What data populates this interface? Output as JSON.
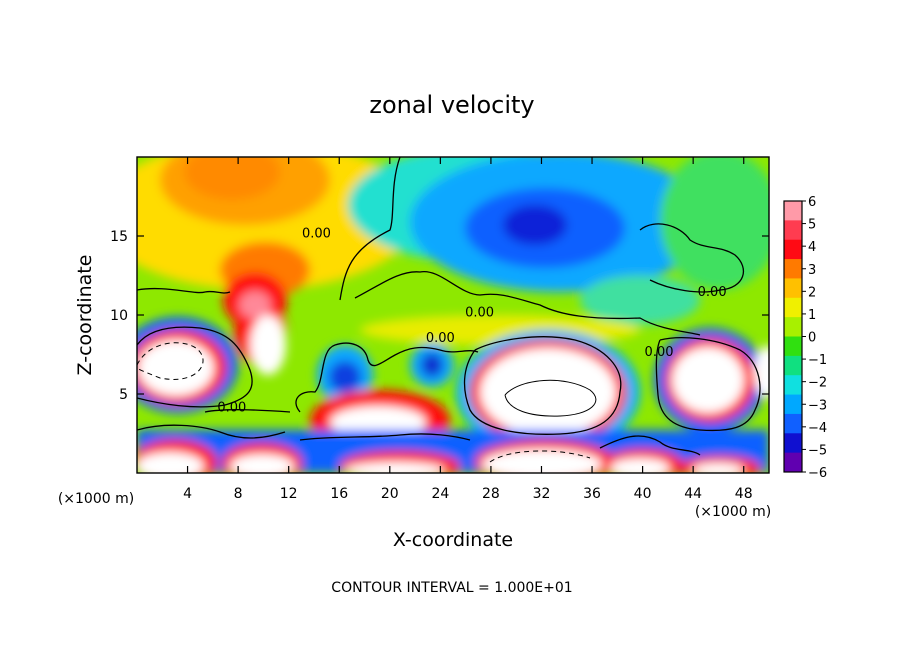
{
  "chart_data": {
    "type": "heatmap",
    "title": "zonal velocity",
    "xlabel": "X-coordinate",
    "ylabel": "Z-coordinate",
    "x_unit": "(×1000 m)",
    "z_unit": "(×1000 m)",
    "xlim": [
      0,
      50
    ],
    "ylim": [
      0,
      20
    ],
    "x_ticks": [
      4,
      8,
      12,
      16,
      20,
      24,
      28,
      32,
      36,
      40,
      44,
      48
    ],
    "x_tick_labels": [
      "4",
      "8",
      "12",
      "16",
      "20",
      "24",
      "28",
      "32",
      "36",
      "40",
      "44",
      "48"
    ],
    "y_ticks": [
      5,
      10,
      15
    ],
    "y_tick_labels": [
      "5",
      "10",
      "15"
    ],
    "colorbar": {
      "ticks": [
        6,
        5,
        4,
        3,
        2,
        1,
        0,
        -1,
        -2,
        -3,
        -4,
        -5,
        -6
      ],
      "tick_labels": [
        "6",
        "5",
        "4",
        "3",
        "2",
        "1",
        "0",
        "−1",
        "−2",
        "−3",
        "−4",
        "−5",
        "−6"
      ],
      "colors": [
        "#ff9aa8",
        "#ff3c50",
        "#ff0a14",
        "#ff7a00",
        "#ffc000",
        "#f0f000",
        "#a8f000",
        "#30e010",
        "#10e080",
        "#10e0e0",
        "#00a8ff",
        "#1060ff",
        "#1010d0",
        "#6000b0"
      ]
    },
    "contour_labels": [
      {
        "text": "0.00",
        "x": 14.2,
        "z": 14.9
      },
      {
        "text": "0.00",
        "x": 24.0,
        "z": 8.3
      },
      {
        "text": "0.00",
        "x": 27.1,
        "z": 9.9
      },
      {
        "text": "0.00",
        "x": 45.5,
        "z": 11.2
      },
      {
        "text": "0.00",
        "x": 7.5,
        "z": 3.9
      },
      {
        "text": "0.00",
        "x": 41.3,
        "z": 7.4
      }
    ],
    "field_features": [
      {
        "kind": "jet",
        "sign": "+",
        "x": 31.5,
        "z": 5.2,
        "peak": 10
      },
      {
        "kind": "jet",
        "sign": "+",
        "x": 4.5,
        "z": 6.5,
        "peak": 10
      },
      {
        "kind": "jet",
        "sign": "+",
        "x": 45.5,
        "z": 6.2,
        "peak": 9
      },
      {
        "kind": "jet",
        "sign": "+",
        "x": 9.2,
        "z": 8.8,
        "peak": 8
      },
      {
        "kind": "jet",
        "sign": "+",
        "x": 21.0,
        "z": 3.2,
        "peak": 8
      },
      {
        "kind": "jet",
        "sign": "+",
        "x": 19.8,
        "z": 0.4,
        "peak": 9
      },
      {
        "kind": "jet",
        "sign": "+",
        "x": 32.0,
        "z": 0.3,
        "peak": 9
      },
      {
        "kind": "min",
        "sign": "-",
        "x": 31.5,
        "z": 15.3,
        "peak": -4.5
      },
      {
        "kind": "min",
        "sign": "-",
        "x": 16.0,
        "z": 6.0,
        "peak": -5
      },
      {
        "kind": "min",
        "sign": "-",
        "x": 23.7,
        "z": 6.8,
        "peak": -5
      }
    ],
    "footer": "CONTOUR INTERVAL = 1.000E+01"
  }
}
